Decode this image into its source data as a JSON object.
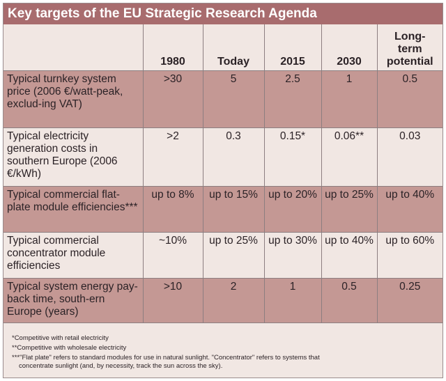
{
  "title": "Key targets of the EU Strategic Research Agenda",
  "columns": [
    "",
    "1980",
    "Today",
    "2015",
    "2030",
    "Long-\nterm\npotential"
  ],
  "rows": [
    {
      "label": "Typical turnkey system price (2006 €/watt-peak, exclud-ing VAT)",
      "values": [
        ">30",
        "5",
        "2.5",
        "1",
        "0.5"
      ]
    },
    {
      "label": "Typical electricity generation costs in southern Europe (2006 €/kWh)",
      "values": [
        ">2",
        "0.3",
        "0.15*",
        "0.06**",
        "0.03"
      ]
    },
    {
      "label": "Typical commercial flat-plate module efficiencies***",
      "values": [
        "up to 8%",
        "up to 15%",
        "up to 20%",
        "up to 25%",
        "up to 40%"
      ]
    },
    {
      "label": "Typical commercial concentrator module efficiencies",
      "values": [
        "~10%",
        "up to 25%",
        "up to 30%",
        "up to 40%",
        "up to 60%"
      ]
    },
    {
      "label": "Typical system energy pay-back time, south-ern Europe (years)",
      "values": [
        ">10",
        "2",
        "1",
        "0.5",
        "0.25"
      ]
    }
  ],
  "footnotes": [
    "*Competitive with retail electricity",
    "**Competitive with wholesale electricity",
    "***\"Flat plate\" refers to standard modules for use in natural sunlight. \"Concentrator\" refers to systems that",
    "concentrate sunlight (and, by necessity, track the sun across the sky)."
  ]
}
